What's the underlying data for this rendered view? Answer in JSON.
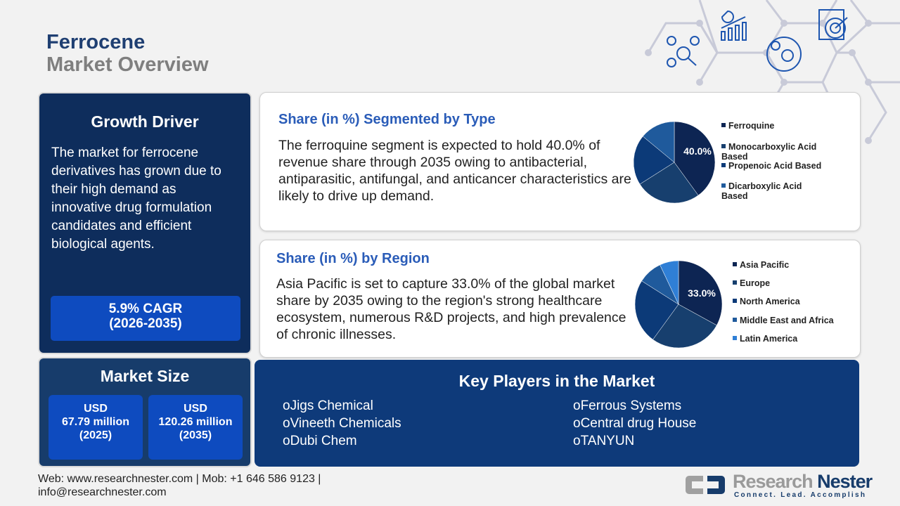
{
  "header": {
    "title": "Ferrocene",
    "subtitle": "Market Overview"
  },
  "growth_driver": {
    "heading": "Growth Driver",
    "text": "The market for ferrocene derivatives has grown due to their high demand as innovative drug formulation candidates and efficient biological agents.",
    "cagr_line1": "5.9% CAGR",
    "cagr_line2": "(2026-2035)"
  },
  "market_size": {
    "heading": "Market Size",
    "boxes": [
      {
        "currency": "USD",
        "value": "67.79 million",
        "year": "(2025)"
      },
      {
        "currency": "USD",
        "value": "120.26 million",
        "year": "(2035)"
      }
    ]
  },
  "type_segment": {
    "heading": "Share (in %) Segmented by Type",
    "text": "The ferroquine segment is expected to hold 40.0% of revenue share through 2035 owing to antibacterial, antiparasitic, antifungal, and anticancer characteristics are likely to drive up demand.",
    "pie_label": "40.0%"
  },
  "region_segment": {
    "heading": "Share (in %) by Region",
    "text": "Asia Pacific is set to capture 33.0% of the global market share by 2035 owing to the region's strong healthcare ecosystem, numerous R&D projects, and high prevalence of chronic illnesses.",
    "pie_label": "33.0%"
  },
  "chart_data": [
    {
      "type": "pie",
      "categories": [
        "Ferroquine",
        "Monocarboxylic Acid Based",
        "Propenoic Acid Based",
        "Dicarboxylic Acid Based"
      ],
      "values": [
        40,
        26,
        20,
        14
      ],
      "colors": [
        "#0d2553",
        "#173f6e",
        "#0c3a78",
        "#1f5a9c"
      ],
      "data_labels": [
        "40.0%"
      ],
      "legend": "right"
    },
    {
      "type": "pie",
      "categories": [
        "Asia Pacific",
        "Europe",
        "North America",
        "Middle East and Africa",
        "Latin America"
      ],
      "values": [
        33,
        27,
        24,
        9,
        7
      ],
      "colors": [
        "#0d2553",
        "#173f6e",
        "#0c3a78",
        "#1f5a9c",
        "#2f7fd6"
      ],
      "data_labels": [
        "33.0%"
      ],
      "legend": "right"
    }
  ],
  "key_players": {
    "heading": "Key Players in the Market",
    "items": [
      "Jigs Chemical",
      "Vineeth Chemicals",
      "Dubi Chem",
      "Ferrous Systems",
      "Central drug House",
      "TANYUN"
    ],
    "bullet": "o"
  },
  "footer": {
    "line1": "Web: www.researchnester.com | Mob: +1 646 586 9123 |",
    "line2": "info@researchnester.com"
  },
  "logo": {
    "name1": "Research",
    "name2": "Nester",
    "tagline": "Connect. Lead. Accomplish"
  },
  "icons": [
    "network-analysis-icon",
    "growth-chart-icon",
    "global-market-icon",
    "target-clipboard-icon"
  ]
}
